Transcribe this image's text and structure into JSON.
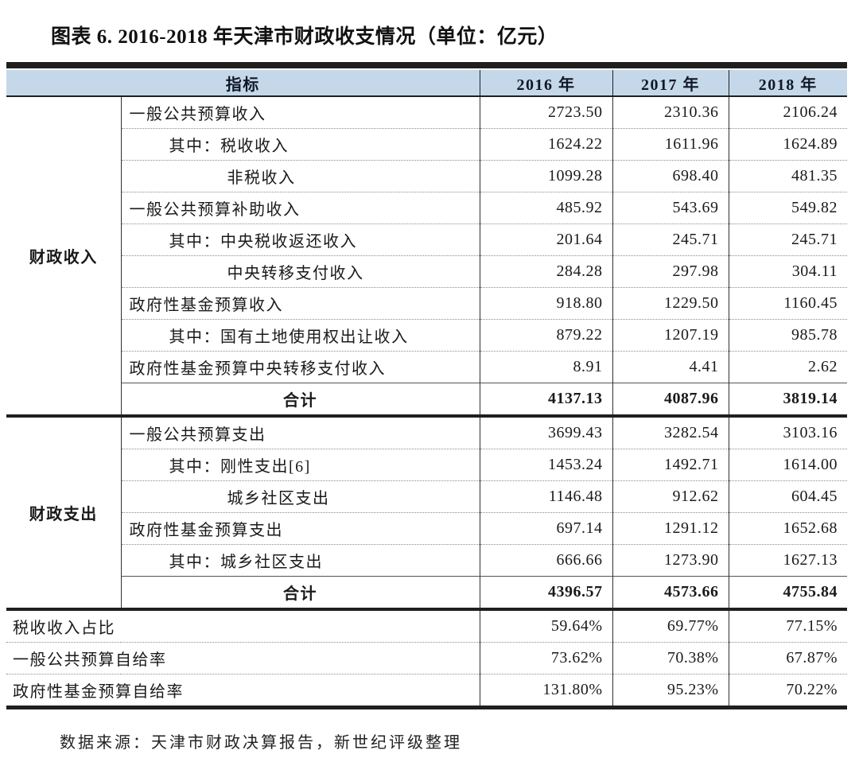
{
  "title": "图表 6. 2016-2018 年天津市财政收支情况（单位：亿元）",
  "source_note": "数据来源：天津市财政决算报告，新世纪评级整理",
  "colors": {
    "header_bg": "#c5d8ea",
    "heavy_line": "#1f1f1f",
    "text": "#1a1a1a"
  },
  "table": {
    "header": {
      "indicator": "指标",
      "years": [
        "2016 年",
        "2017 年",
        "2018 年"
      ]
    },
    "sections": [
      {
        "group": "财政收入",
        "rows": [
          {
            "label": "一般公共预算收入",
            "indent": 0,
            "values": [
              "2723.50",
              "2310.36",
              "2106.24"
            ]
          },
          {
            "label": "其中：税收收入",
            "indent": 1,
            "values": [
              "1624.22",
              "1611.96",
              "1624.89"
            ]
          },
          {
            "label": "非税收入",
            "indent": 2,
            "values": [
              "1099.28",
              "698.40",
              "481.35"
            ]
          },
          {
            "label": "一般公共预算补助收入",
            "indent": 0,
            "values": [
              "485.92",
              "543.69",
              "549.82"
            ]
          },
          {
            "label": "其中：中央税收返还收入",
            "indent": 1,
            "values": [
              "201.64",
              "245.71",
              "245.71"
            ]
          },
          {
            "label": "中央转移支付收入",
            "indent": 2,
            "values": [
              "284.28",
              "297.98",
              "304.11"
            ]
          },
          {
            "label": "政府性基金预算收入",
            "indent": 0,
            "values": [
              "918.80",
              "1229.50",
              "1160.45"
            ]
          },
          {
            "label": "其中：国有土地使用权出让收入",
            "indent": 1,
            "values": [
              "879.22",
              "1207.19",
              "985.78"
            ]
          },
          {
            "label": "政府性基金预算中央转移支付收入",
            "indent": 0,
            "values": [
              "8.91",
              "4.41",
              "2.62"
            ]
          },
          {
            "label": "合计",
            "total": true,
            "values": [
              "4137.13",
              "4087.96",
              "3819.14"
            ]
          }
        ]
      },
      {
        "group": "财政支出",
        "rows": [
          {
            "label": "一般公共预算支出",
            "indent": 0,
            "values": [
              "3699.43",
              "3282.54",
              "3103.16"
            ]
          },
          {
            "label": "其中：刚性支出[6]",
            "indent": 1,
            "values": [
              "1453.24",
              "1492.71",
              "1614.00"
            ]
          },
          {
            "label": "城乡社区支出",
            "indent": 2,
            "values": [
              "1146.48",
              "912.62",
              "604.45"
            ]
          },
          {
            "label": "政府性基金预算支出",
            "indent": 0,
            "values": [
              "697.14",
              "1291.12",
              "1652.68"
            ]
          },
          {
            "label": "其中：城乡社区支出",
            "indent": 1,
            "values": [
              "666.66",
              "1273.90",
              "1627.13"
            ]
          },
          {
            "label": "合计",
            "total": true,
            "values": [
              "4396.57",
              "4573.66",
              "4755.84"
            ]
          }
        ]
      }
    ],
    "ratio_rows": [
      {
        "label": "税收收入占比",
        "values": [
          "59.64%",
          "69.77%",
          "77.15%"
        ]
      },
      {
        "label": "一般公共预算自给率",
        "values": [
          "73.62%",
          "70.38%",
          "67.87%"
        ]
      },
      {
        "label": "政府性基金预算自给率",
        "values": [
          "131.80%",
          "95.23%",
          "70.22%"
        ]
      }
    ]
  }
}
